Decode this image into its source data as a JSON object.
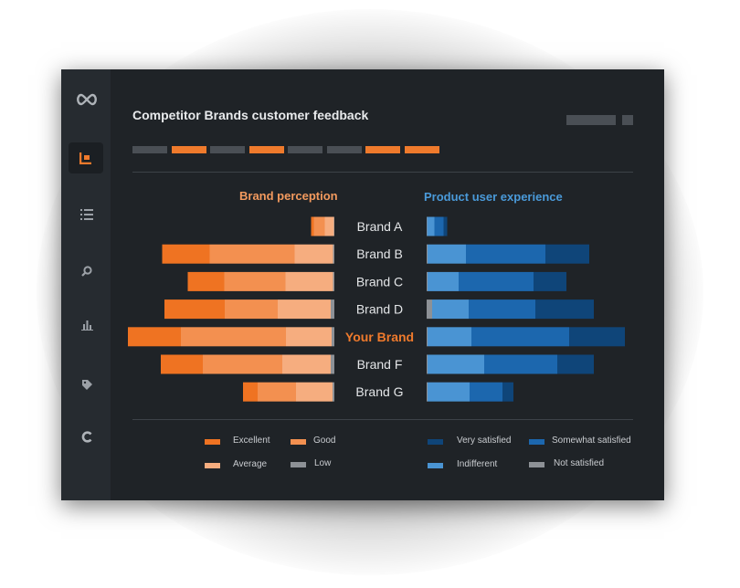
{
  "title": "Competitor Brands customer feedback",
  "colors": {
    "background": "#1f2327",
    "sidebar": "#262b30",
    "accent_orange": "#ef7a2c",
    "accent_blue": "#4a94d3",
    "placeholder_gray": "#4a4f55"
  },
  "sidebar": {
    "items": [
      {
        "icon": "infinity-logo-icon",
        "active": false
      },
      {
        "icon": "dashboard-icon",
        "active": true
      },
      {
        "icon": "list-icon",
        "active": false
      },
      {
        "icon": "search-icon",
        "active": false
      },
      {
        "icon": "bar-chart-icon",
        "active": false
      },
      {
        "icon": "tag-icon",
        "active": false
      },
      {
        "icon": "refresh-icon",
        "active": false
      }
    ]
  },
  "header_segments": [
    "gray",
    "orange",
    "gray",
    "orange",
    "gray",
    "gray",
    "orange",
    "orange"
  ],
  "chart_data": {
    "type": "bar",
    "layout": "diverging-stacked-horizontal",
    "categories": [
      "Brand A",
      "Brand B",
      "Brand C",
      "Brand D",
      "Your Brand",
      "Brand F",
      "Brand G"
    ],
    "highlighted_category": "Your Brand",
    "panels": [
      {
        "title": "Brand perception",
        "direction": "left",
        "series": [
          {
            "name": "Low",
            "color": "#8d9196",
            "values": [
              0.5,
              1.5,
              1.5,
              4,
              3,
              4,
              2
            ]
          },
          {
            "name": "Average",
            "color": "#f6ad7f",
            "values": [
              10,
              42,
              52,
              58,
              50,
              53,
              40
            ]
          },
          {
            "name": "Good",
            "color": "#f39050",
            "values": [
              12,
              93,
              67,
              58,
              115,
              87,
              42
            ]
          },
          {
            "name": "Excellent",
            "color": "#ef7322",
            "values": [
              3,
              52,
              40,
              66,
              58,
              46,
              16
            ]
          }
        ]
      },
      {
        "title": "Product user experience",
        "direction": "right",
        "series": [
          {
            "name": "Not satisfied",
            "color": "#8d9196",
            "values": [
              0.5,
              1,
              1,
              6,
              1,
              1,
              1
            ]
          },
          {
            "name": "Indifferent",
            "color": "#4a94d3",
            "values": [
              8,
              42,
              34,
              40,
              48,
              62,
              46
            ]
          },
          {
            "name": "Somewhat satisfied",
            "color": "#1c67ae",
            "values": [
              10,
              87,
              82,
              73,
              107,
              80,
              36
            ]
          },
          {
            "name": "Very satisfied",
            "color": "#0f4579",
            "values": [
              4,
              48,
              36,
              64,
              61,
              40,
              12
            ]
          }
        ]
      }
    ],
    "legend": [
      {
        "label": "Excellent",
        "color": "#ef7322"
      },
      {
        "label": "Good",
        "color": "#f39050"
      },
      {
        "label": "Average",
        "color": "#f6ad7f"
      },
      {
        "label": "Low",
        "color": "#8d9196"
      },
      {
        "label": "Very satisfied",
        "color": "#0f4579"
      },
      {
        "label": "Somewhat satisfied",
        "color": "#1c67ae"
      },
      {
        "label": "Indifferent",
        "color": "#4a94d3"
      },
      {
        "label": "Not satisfied",
        "color": "#8d9196"
      }
    ],
    "xlabel": "",
    "ylabel": "",
    "grid": false,
    "legend_position": "bottom"
  }
}
